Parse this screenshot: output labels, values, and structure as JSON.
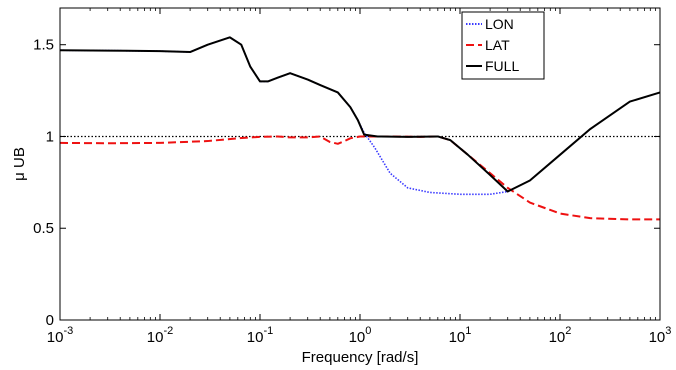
{
  "chart_data": {
    "type": "line",
    "xlabel": "Frequency [rad/s]",
    "ylabel": "μ UB",
    "xscale": "log",
    "xlim": [
      0.001,
      1000
    ],
    "ylim": [
      0,
      1.7
    ],
    "x_ticks": [
      {
        "base": "10",
        "exp": "-3",
        "value": 0.001
      },
      {
        "base": "10",
        "exp": "-2",
        "value": 0.01
      },
      {
        "base": "10",
        "exp": "-1",
        "value": 0.1
      },
      {
        "base": "10",
        "exp": "0",
        "value": 1
      },
      {
        "base": "10",
        "exp": "1",
        "value": 10
      },
      {
        "base": "10",
        "exp": "2",
        "value": 100
      },
      {
        "base": "10",
        "exp": "3",
        "value": 1000
      }
    ],
    "y_ticks": [
      {
        "label": "0",
        "value": 0
      },
      {
        "label": "0.5",
        "value": 0.5
      },
      {
        "label": "1",
        "value": 1
      },
      {
        "label": "1.5",
        "value": 1.5
      }
    ],
    "grid": false,
    "legend_position": "top-right",
    "reference_line": {
      "y": 1,
      "style": "dotted",
      "color": "#000000"
    },
    "series": [
      {
        "name": "LON",
        "color": "#3a3aff",
        "style": "dotted",
        "points": [
          [
            0.001,
            1.47
          ],
          [
            0.003,
            1.468
          ],
          [
            0.01,
            1.465
          ],
          [
            0.02,
            1.46
          ],
          [
            0.03,
            1.5
          ],
          [
            0.05,
            1.54
          ],
          [
            0.065,
            1.5
          ],
          [
            0.08,
            1.38
          ],
          [
            0.1,
            1.3
          ],
          [
            0.12,
            1.3
          ],
          [
            0.15,
            1.32
          ],
          [
            0.2,
            1.345
          ],
          [
            0.3,
            1.31
          ],
          [
            0.4,
            1.28
          ],
          [
            0.6,
            1.24
          ],
          [
            0.8,
            1.16
          ],
          [
            0.95,
            1.09
          ],
          [
            1.1,
            1.02
          ],
          [
            1.4,
            0.94
          ],
          [
            2,
            0.8
          ],
          [
            3,
            0.72
          ],
          [
            5,
            0.695
          ],
          [
            10,
            0.685
          ],
          [
            20,
            0.685
          ],
          [
            30,
            0.7
          ]
        ]
      },
      {
        "name": "LAT",
        "color": "#ee1111",
        "style": "dashed",
        "points": [
          [
            0.001,
            0.965
          ],
          [
            0.003,
            0.963
          ],
          [
            0.01,
            0.965
          ],
          [
            0.03,
            0.975
          ],
          [
            0.06,
            0.99
          ],
          [
            0.1,
            0.998
          ],
          [
            0.15,
            1.0
          ],
          [
            0.2,
            0.995
          ],
          [
            0.3,
            0.995
          ],
          [
            0.4,
            1.0
          ],
          [
            0.5,
            0.97
          ],
          [
            0.6,
            0.96
          ],
          [
            0.7,
            0.975
          ],
          [
            0.8,
            0.99
          ],
          [
            1.0,
            1.0
          ],
          [
            2,
            1.0
          ],
          [
            4,
            0.998
          ],
          [
            6,
            1.0
          ],
          [
            8,
            0.98
          ],
          [
            12,
            0.9
          ],
          [
            20,
            0.8
          ],
          [
            30,
            0.72
          ],
          [
            50,
            0.64
          ],
          [
            100,
            0.58
          ],
          [
            200,
            0.555
          ],
          [
            500,
            0.548
          ],
          [
            1000,
            0.548
          ]
        ]
      },
      {
        "name": "FULL",
        "color": "#000000",
        "style": "solid",
        "points": [
          [
            0.001,
            1.47
          ],
          [
            0.003,
            1.468
          ],
          [
            0.01,
            1.465
          ],
          [
            0.02,
            1.46
          ],
          [
            0.03,
            1.5
          ],
          [
            0.05,
            1.54
          ],
          [
            0.065,
            1.5
          ],
          [
            0.08,
            1.38
          ],
          [
            0.1,
            1.3
          ],
          [
            0.12,
            1.3
          ],
          [
            0.15,
            1.32
          ],
          [
            0.2,
            1.345
          ],
          [
            0.3,
            1.31
          ],
          [
            0.4,
            1.28
          ],
          [
            0.6,
            1.24
          ],
          [
            0.8,
            1.16
          ],
          [
            0.95,
            1.09
          ],
          [
            1.1,
            1.01
          ],
          [
            1.5,
            1.0
          ],
          [
            3,
            0.998
          ],
          [
            6,
            1.0
          ],
          [
            8,
            0.98
          ],
          [
            12,
            0.9
          ],
          [
            20,
            0.79
          ],
          [
            30,
            0.7
          ],
          [
            50,
            0.76
          ],
          [
            100,
            0.9
          ],
          [
            200,
            1.04
          ],
          [
            500,
            1.19
          ],
          [
            1000,
            1.24
          ]
        ]
      }
    ]
  }
}
